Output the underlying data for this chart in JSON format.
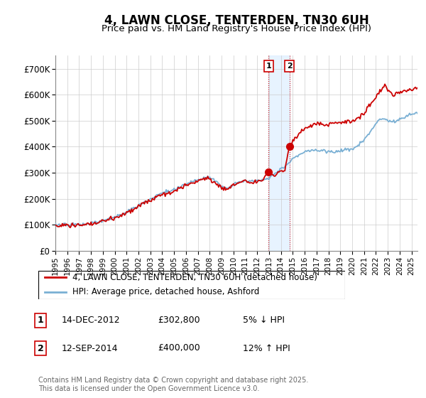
{
  "title": "4, LAWN CLOSE, TENTERDEN, TN30 6UH",
  "subtitle": "Price paid vs. HM Land Registry's House Price Index (HPI)",
  "ylim": [
    0,
    750000
  ],
  "yticks": [
    0,
    100000,
    200000,
    300000,
    400000,
    500000,
    600000,
    700000
  ],
  "ytick_labels": [
    "£0",
    "£100K",
    "£200K",
    "£300K",
    "£400K",
    "£500K",
    "£600K",
    "£700K"
  ],
  "xlim_start": 1995,
  "xlim_end": 2025.5,
  "background_color": "#ffffff",
  "grid_color": "#cccccc",
  "line_red_color": "#cc0000",
  "line_blue_color": "#7ab0d4",
  "shade_color": "#ddeeff",
  "marker1_date": 2012.96,
  "marker1_price": 302800,
  "marker2_date": 2014.71,
  "marker2_price": 400000,
  "legend_line1": "4, LAWN CLOSE, TENTERDEN, TN30 6UH (detached house)",
  "legend_line2": "HPI: Average price, detached house, Ashford",
  "annotation1_num": "1",
  "annotation1_date": "14-DEC-2012",
  "annotation1_price": "£302,800",
  "annotation1_hpi": "5% ↓ HPI",
  "annotation2_num": "2",
  "annotation2_date": "12-SEP-2014",
  "annotation2_price": "£400,000",
  "annotation2_hpi": "12% ↑ HPI",
  "footer": "Contains HM Land Registry data © Crown copyright and database right 2025.\nThis data is licensed under the Open Government Licence v3.0."
}
